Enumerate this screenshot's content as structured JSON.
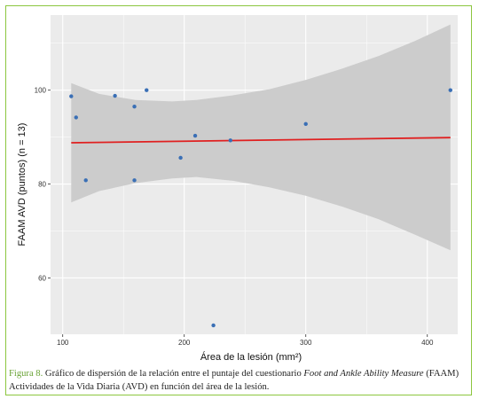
{
  "chart_data": {
    "type": "scatter",
    "xlabel": "Área de la lesión (mm²)",
    "ylabel": "FAAM AVD (puntos) (n = 13)",
    "xlim": [
      90,
      425
    ],
    "ylim": [
      48,
      116
    ],
    "xticks": [
      100,
      200,
      300,
      400
    ],
    "yticks": [
      60,
      80,
      100
    ],
    "points": [
      {
        "x": 107,
        "y": 98.7
      },
      {
        "x": 111,
        "y": 94.2
      },
      {
        "x": 119,
        "y": 80.8
      },
      {
        "x": 143,
        "y": 98.8
      },
      {
        "x": 159,
        "y": 96.5
      },
      {
        "x": 159,
        "y": 80.8
      },
      {
        "x": 169,
        "y": 100.0
      },
      {
        "x": 197,
        "y": 85.6
      },
      {
        "x": 209,
        "y": 90.3
      },
      {
        "x": 224,
        "y": 49.9
      },
      {
        "x": 238,
        "y": 89.3
      },
      {
        "x": 300,
        "y": 92.8
      },
      {
        "x": 419,
        "y": 100.0
      }
    ],
    "trend": {
      "x": [
        107,
        419
      ],
      "y": [
        88.8,
        89.9
      ]
    },
    "confidence_band": {
      "x": [
        107,
        130,
        160,
        190,
        210,
        240,
        270,
        300,
        330,
        360,
        390,
        419
      ],
      "upper": [
        101.5,
        99.2,
        97.9,
        97.6,
        97.9,
        98.9,
        100.2,
        102.2,
        104.6,
        107.3,
        110.5,
        114.0
      ],
      "lower": [
        76.1,
        78.5,
        80.2,
        81.2,
        81.5,
        80.7,
        79.3,
        77.5,
        75.2,
        72.5,
        69.2,
        65.9
      ]
    },
    "colors": {
      "points": "#3a6fb5",
      "trend": "#e02020",
      "band": "#cccccc",
      "panel": "#ebebeb",
      "grid": "#ffffff"
    },
    "grid": true
  },
  "caption": {
    "label": "Figura 8.",
    "text_before": " Gráfico de dispersión de la relación entre el puntaje del cuestionario ",
    "text_italic": "Foot and Ankle Ability Measure",
    "text_after": " (FAAM) Actividades de la Vida Diaria (AVD) en función del área de la lesión."
  }
}
